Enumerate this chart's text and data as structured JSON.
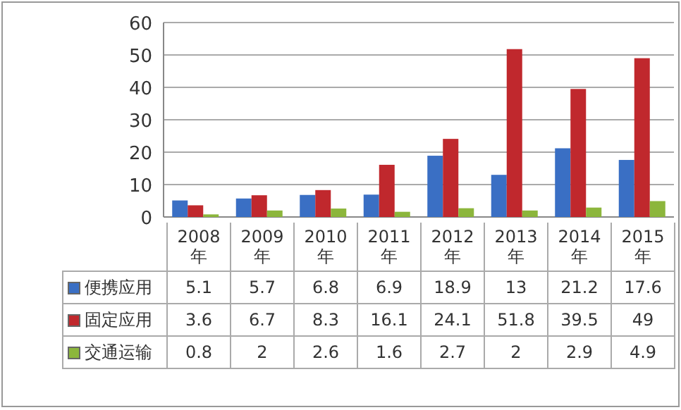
{
  "chart_data": {
    "type": "bar",
    "categories": [
      "2008年",
      "2009年",
      "2010年",
      "2011年",
      "2012年",
      "2013年",
      "2014年",
      "2015年"
    ],
    "series": [
      {
        "name": "便携应用",
        "color": "#3a6fc4",
        "values": [
          5.1,
          5.7,
          6.8,
          6.9,
          18.9,
          13,
          21.2,
          17.6
        ]
      },
      {
        "name": "固定应用",
        "color": "#c0282d",
        "values": [
          3.6,
          6.7,
          8.3,
          16.1,
          24.1,
          51.8,
          39.5,
          49
        ]
      },
      {
        "name": "交通运输",
        "color": "#8cb63c",
        "values": [
          0.8,
          2,
          2.6,
          1.6,
          2.7,
          2,
          2.9,
          4.9
        ]
      }
    ],
    "ylim": [
      0,
      60
    ],
    "yticks": [
      0,
      10,
      20,
      30,
      40,
      50,
      60
    ],
    "grid": "y",
    "legend": "bottom",
    "data_labels": true
  }
}
